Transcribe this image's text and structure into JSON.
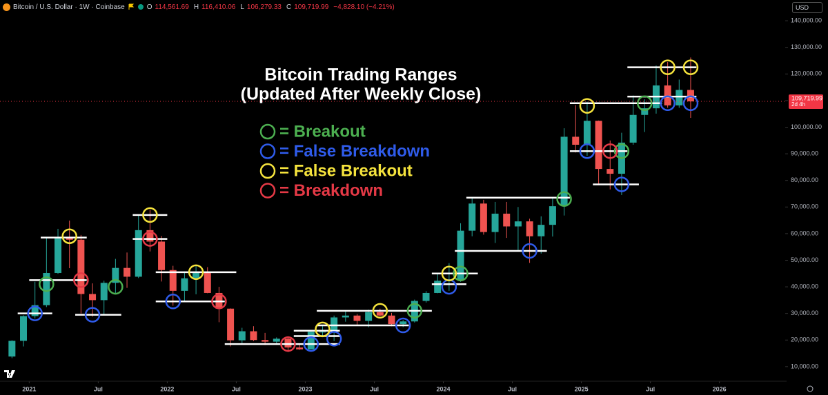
{
  "header": {
    "symbol": "Bitcoin / U.S. Dollar · 1W · Coinbase",
    "ohlc": [
      {
        "label": "O",
        "value": "114,561.69"
      },
      {
        "label": "H",
        "value": "116,410.06"
      },
      {
        "label": "L",
        "value": "106,279.33"
      },
      {
        "label": "C",
        "value": "109,719.99"
      }
    ],
    "change": "−4,828.10 (−4.21%)",
    "currency": "USD"
  },
  "chart_data": {
    "type": "candlestick",
    "title": "Bitcoin Trading Ranges",
    "subtitle": "(Updated After Weekly Close)",
    "x": [
      "2020-11",
      "2020-12",
      "2021-01",
      "2021-02",
      "2021-03",
      "2021-04",
      "2021-05",
      "2021-06",
      "2021-07",
      "2021-08",
      "2021-09",
      "2021-10",
      "2021-11",
      "2021-12",
      "2022-01",
      "2022-02",
      "2022-03",
      "2022-04",
      "2022-05",
      "2022-06",
      "2022-07",
      "2022-08",
      "2022-09",
      "2022-10",
      "2022-11",
      "2022-12",
      "2023-01",
      "2023-02",
      "2023-03",
      "2023-04",
      "2023-05",
      "2023-06",
      "2023-07",
      "2023-08",
      "2023-09",
      "2023-10",
      "2023-11",
      "2023-12",
      "2024-01",
      "2024-02",
      "2024-03",
      "2024-04",
      "2024-05",
      "2024-06",
      "2024-07",
      "2024-08",
      "2024-09",
      "2024-10",
      "2024-11",
      "2024-12",
      "2025-01",
      "2025-02",
      "2025-03",
      "2025-04",
      "2025-05",
      "2025-06",
      "2025-07",
      "2025-08",
      "2025-09",
      "2025-10"
    ],
    "open": [
      13800,
      19700,
      29000,
      33100,
      45200,
      58800,
      57700,
      37300,
      35000,
      41500,
      47100,
      43800,
      61300,
      57000,
      46300,
      38500,
      43200,
      45500,
      37700,
      31800,
      19900,
      23300,
      20000,
      19400,
      20500,
      17200,
      16500,
      23100,
      23100,
      28500,
      29200,
      27200,
      30500,
      29200,
      26000,
      27000,
      34700,
      37700,
      42300,
      42600,
      61100,
      71300,
      60600,
      67500,
      62700,
      64600,
      59000,
      63300,
      70300,
      96400,
      93400,
      102400,
      84300,
      82500,
      94200,
      104600,
      107100,
      115700,
      108200,
      114000
    ],
    "high": [
      19900,
      29300,
      41900,
      58300,
      61800,
      64900,
      59500,
      41300,
      42300,
      50500,
      52900,
      66900,
      69000,
      59100,
      47900,
      45800,
      48200,
      47400,
      40000,
      31900,
      24600,
      25200,
      22700,
      21000,
      21400,
      18400,
      23800,
      25200,
      29200,
      31000,
      29800,
      31400,
      31800,
      30200,
      27500,
      35200,
      38400,
      44700,
      48900,
      63900,
      73800,
      72700,
      71900,
      71900,
      70000,
      65600,
      66500,
      73600,
      99600,
      108300,
      109600,
      102500,
      95000,
      97900,
      111900,
      110500,
      123200,
      124500,
      117900,
      126200
    ],
    "low": [
      13200,
      17600,
      28100,
      32400,
      44900,
      47000,
      30000,
      28800,
      29300,
      37300,
      39600,
      43300,
      53300,
      42000,
      32900,
      34300,
      37200,
      37600,
      26700,
      17600,
      18800,
      19600,
      18100,
      18200,
      15500,
      16300,
      16500,
      21400,
      19600,
      26900,
      25800,
      24800,
      28900,
      25200,
      24900,
      26600,
      34100,
      37600,
      38500,
      41900,
      59000,
      59600,
      56500,
      58400,
      53500,
      49000,
      52500,
      58900,
      66800,
      90500,
      89200,
      78200,
      76600,
      74500,
      93400,
      98200,
      105100,
      107300,
      107300,
      103500
    ],
    "close": [
      19700,
      29000,
      33100,
      45200,
      58800,
      57700,
      37300,
      35000,
      41500,
      47100,
      43800,
      61300,
      57000,
      46300,
      38500,
      43200,
      45500,
      37700,
      31800,
      19900,
      23300,
      20000,
      19400,
      20500,
      17200,
      16500,
      23100,
      23100,
      28500,
      29200,
      27200,
      30500,
      29200,
      26000,
      27000,
      34700,
      37700,
      42300,
      42600,
      61100,
      71300,
      60600,
      67500,
      62700,
      64600,
      59000,
      63300,
      70300,
      96400,
      93400,
      102400,
      84300,
      82500,
      94200,
      104600,
      107100,
      115700,
      108200,
      114000,
      109700
    ],
    "up_color": "#26a69a",
    "down_color": "#ef5350",
    "xlim": [
      "2020-11",
      "2026-06"
    ],
    "xticks": [
      {
        "value": "2021-01",
        "label": "2021"
      },
      {
        "value": "2021-07",
        "label": "Jul"
      },
      {
        "value": "2022-01",
        "label": "2022"
      },
      {
        "value": "2022-07",
        "label": "Jul"
      },
      {
        "value": "2023-01",
        "label": "2023"
      },
      {
        "value": "2023-07",
        "label": "Jul"
      },
      {
        "value": "2024-01",
        "label": "2024"
      },
      {
        "value": "2024-07",
        "label": "Jul"
      },
      {
        "value": "2025-01",
        "label": "2025"
      },
      {
        "value": "2025-07",
        "label": "Jul"
      },
      {
        "value": "2026-01",
        "label": "2026"
      }
    ],
    "ylim": [
      6600,
      142100
    ],
    "yticks": [
      {
        "value": 10000,
        "label": "10,000.00"
      },
      {
        "value": 20000,
        "label": "20,000.00"
      },
      {
        "value": 30000,
        "label": "30,000.00"
      },
      {
        "value": 40000,
        "label": "40,000.00"
      },
      {
        "value": 50000,
        "label": "50,000.00"
      },
      {
        "value": 60000,
        "label": "60,000.00"
      },
      {
        "value": 70000,
        "label": "70,000.00"
      },
      {
        "value": 80000,
        "label": "80,000.00"
      },
      {
        "value": 90000,
        "label": "90,000.00"
      },
      {
        "value": 100000,
        "label": "100,000.00"
      },
      {
        "value": 110000,
        "label": "110,000.00"
      },
      {
        "value": 120000,
        "label": "120,000.00"
      },
      {
        "value": 130000,
        "label": "130,000.00"
      },
      {
        "value": 140000,
        "label": "140,000.00"
      }
    ],
    "last_price": {
      "value": 109719.99,
      "label": "109,719.99",
      "countdown": "2d 4h",
      "color": "#f23645"
    },
    "level_color": "#ffffff",
    "levels": [
      {
        "start": "2020-12",
        "end": "2021-02",
        "value": 30000
      },
      {
        "start": "2021-01",
        "end": "2021-05",
        "value": 42500
      },
      {
        "start": "2021-02",
        "end": "2021-05",
        "value": 58500
      },
      {
        "start": "2021-05",
        "end": "2021-08",
        "value": 29500
      },
      {
        "start": "2021-10",
        "end": "2021-12",
        "value": 67000
      },
      {
        "start": "2021-10",
        "end": "2021-12",
        "value": 58000
      },
      {
        "start": "2021-12",
        "end": "2022-06",
        "value": 45500
      },
      {
        "start": "2021-12",
        "end": "2022-05",
        "value": 34500
      },
      {
        "start": "2022-06",
        "end": "2023-03",
        "value": 18500
      },
      {
        "start": "2022-12",
        "end": "2023-03",
        "value": 23500
      },
      {
        "start": "2022-12",
        "end": "2023-03",
        "value": 21500
      },
      {
        "start": "2023-02",
        "end": "2023-11",
        "value": 31000
      },
      {
        "start": "2023-02",
        "end": "2023-09",
        "value": 25500
      },
      {
        "start": "2023-12",
        "end": "2024-03",
        "value": 45000
      },
      {
        "start": "2023-12",
        "end": "2024-02",
        "value": 41000
      },
      {
        "start": "2024-03",
        "end": "2024-11",
        "value": 73500
      },
      {
        "start": "2024-02",
        "end": "2024-09",
        "value": 53500
      },
      {
        "start": "2024-12",
        "end": "2025-07",
        "value": 109000
      },
      {
        "start": "2024-12",
        "end": "2025-04",
        "value": 91000
      },
      {
        "start": "2025-02",
        "end": "2025-05",
        "value": 78500
      },
      {
        "start": "2025-05",
        "end": "2025-10",
        "value": 122500
      },
      {
        "start": "2025-05",
        "end": "2025-10",
        "value": 111500
      }
    ],
    "signals": [
      {
        "name": "= Breakout",
        "color": "#4caf50",
        "x": [
          "2021-02",
          "2021-08",
          "2023-10",
          "2024-02",
          "2024-11",
          "2025-04",
          "2025-06"
        ],
        "y": [
          41000,
          40000,
          31000,
          45000,
          73000,
          91000,
          109000
        ]
      },
      {
        "name": "= False Breakdown",
        "color": "#2f5bea",
        "x": [
          "2021-01",
          "2021-06",
          "2022-01",
          "2023-01",
          "2023-03",
          "2023-09",
          "2024-01",
          "2024-08",
          "2025-01",
          "2025-04",
          "2025-08",
          "2025-10"
        ],
        "y": [
          30000,
          29500,
          34500,
          18500,
          20500,
          25500,
          40000,
          53500,
          91000,
          78500,
          109000,
          109000
        ]
      },
      {
        "name": "= False Breakout",
        "color": "#f5e33c",
        "x": [
          "2021-04",
          "2021-11",
          "2022-03",
          "2023-02",
          "2023-07",
          "2024-01",
          "2025-01",
          "2025-08",
          "2025-10"
        ],
        "y": [
          59000,
          67000,
          45500,
          24000,
          31000,
          45000,
          108000,
          122500,
          122500
        ]
      },
      {
        "name": "= Breakdown",
        "color": "#e53946",
        "x": [
          "2021-05",
          "2021-11",
          "2022-05",
          "2022-11",
          "2025-03"
        ],
        "y": [
          42500,
          58000,
          34500,
          18500,
          91000
        ]
      }
    ]
  }
}
